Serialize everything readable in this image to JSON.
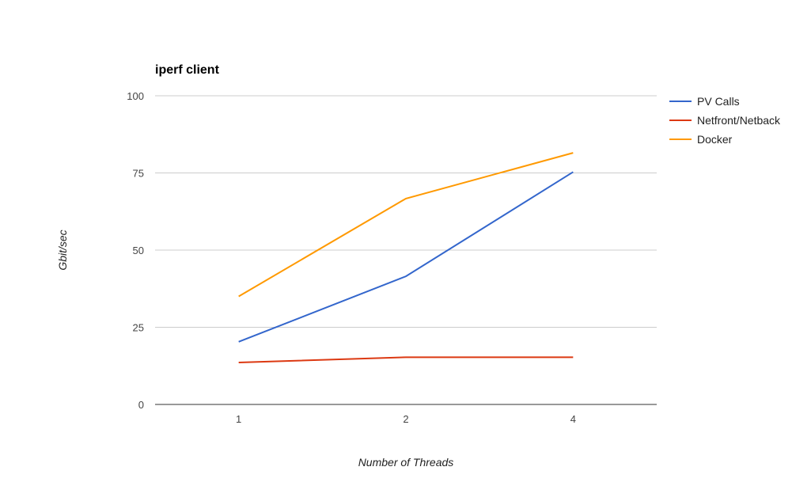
{
  "chart_data": {
    "type": "line",
    "title": "iperf client",
    "xlabel": "Number of Threads",
    "ylabel": "Gbit/sec",
    "categories": [
      "1",
      "2",
      "4"
    ],
    "ylim": [
      0,
      100
    ],
    "yticks": [
      0,
      25,
      50,
      75,
      100
    ],
    "grid": true,
    "legend_position": "right",
    "series": [
      {
        "name": "PV Calls",
        "color": "#3366cc",
        "values": [
          20.3,
          41.5,
          75.3
        ]
      },
      {
        "name": "Netfront/Netback",
        "color": "#dc3912",
        "values": [
          13.6,
          15.3,
          15.3
        ]
      },
      {
        "name": "Docker",
        "color": "#ff9900",
        "values": [
          35.0,
          66.7,
          81.5
        ]
      }
    ]
  }
}
